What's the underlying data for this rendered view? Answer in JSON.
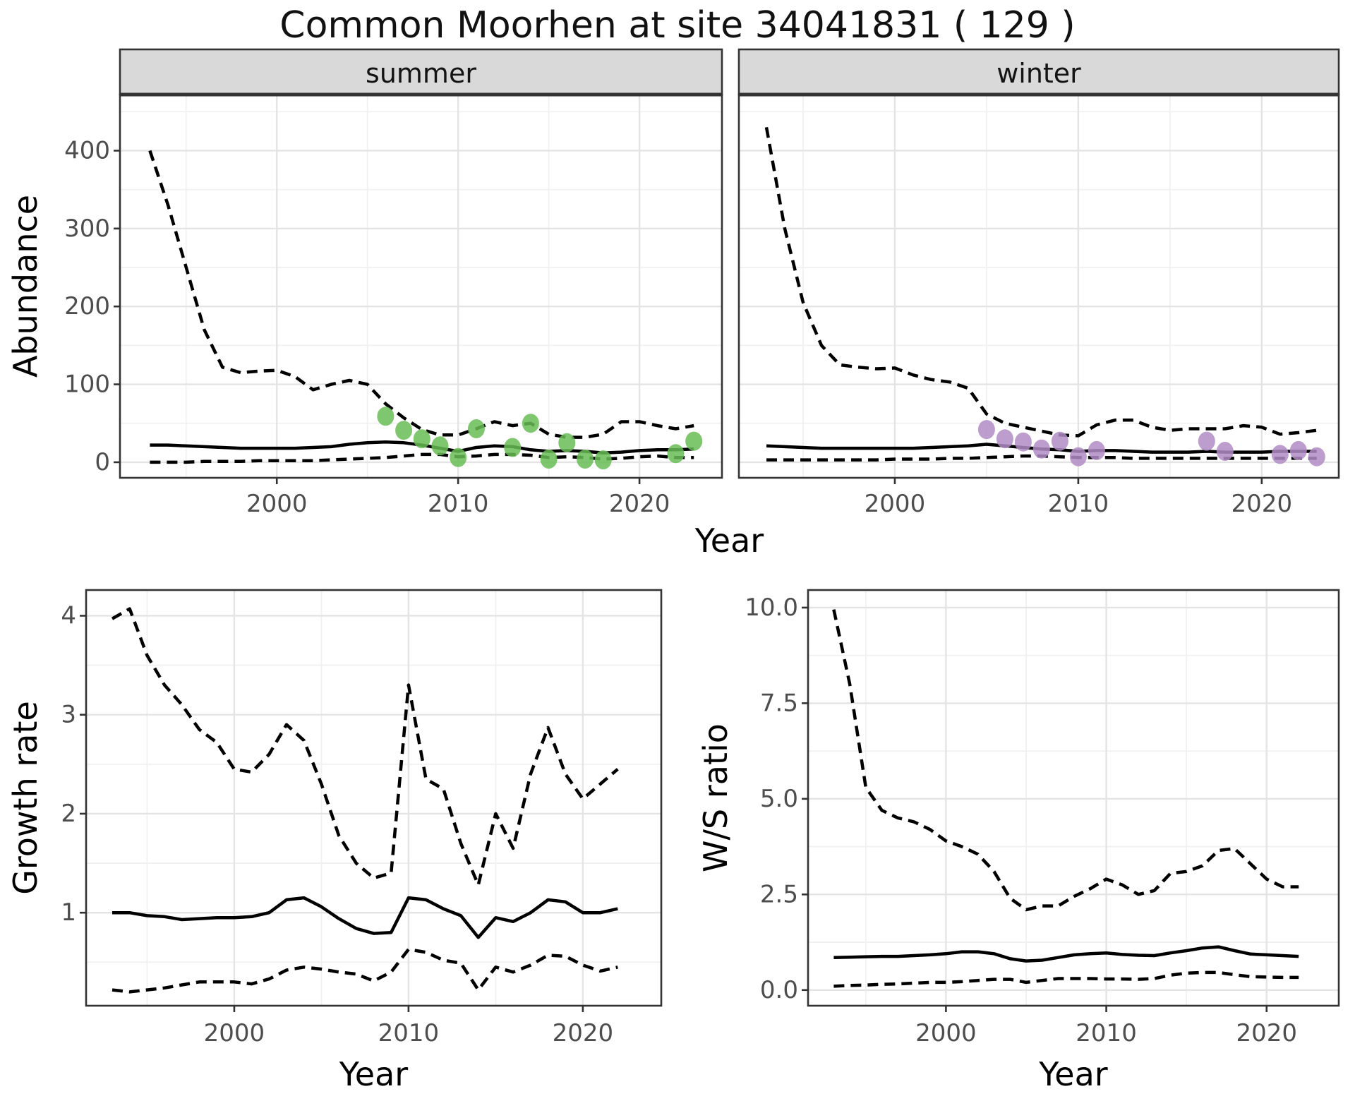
{
  "title": "Common Moorhen at site 34041831 ( 129 )",
  "shared_x_label": "Year",
  "facets": [
    "summer",
    "winter"
  ],
  "colors": {
    "summer_point": "#69bd55",
    "winter_point": "#b18cc6",
    "line": "#000000",
    "grid_major": "#e4e4e4",
    "grid_minor": "#f1f1f1",
    "panel_border": "#333333",
    "strip_bg": "#d9d9d9",
    "strip_text": "#141414",
    "axis_text": "#4d4d4d",
    "axis_title": "#000000",
    "tick_mark": "#333333"
  },
  "chart_data": [
    {
      "id": "abundance-summer",
      "type": "line",
      "facet": "summer",
      "xlabel": "Year",
      "ylabel": "Abundance",
      "xlim": [
        1991.35,
        2024.55
      ],
      "ylim": [
        -20,
        472
      ],
      "x_ticks": [
        2000,
        2010,
        2020
      ],
      "x_tick_labels": [
        "2000",
        "2010",
        "2020"
      ],
      "x_minor": [
        1995,
        2005,
        2015
      ],
      "y_ticks": [
        0,
        100,
        200,
        300,
        400
      ],
      "y_tick_labels": [
        "0",
        "100",
        "200",
        "300",
        "400"
      ],
      "y_minor": [
        50,
        150,
        250,
        350,
        450
      ],
      "x": [
        1993,
        1994,
        1995,
        1996,
        1997,
        1998,
        1999,
        2000,
        2001,
        2002,
        2003,
        2004,
        2005,
        2006,
        2007,
        2008,
        2009,
        2010,
        2011,
        2012,
        2013,
        2014,
        2015,
        2016,
        2017,
        2018,
        2019,
        2020,
        2021,
        2022,
        2023
      ],
      "series": [
        {
          "name": "upper_95ci",
          "style": "dashed",
          "values": [
            400,
            330,
            250,
            170,
            122,
            115,
            117,
            118,
            110,
            93,
            100,
            105,
            100,
            75,
            57,
            42,
            35,
            35,
            43,
            52,
            47,
            50,
            36,
            32,
            32,
            36,
            52,
            52,
            47,
            43,
            47
          ]
        },
        {
          "name": "median",
          "style": "solid",
          "values": [
            22,
            22,
            21,
            20,
            19,
            18,
            18,
            18,
            18,
            19,
            20,
            23,
            25,
            26,
            25,
            22,
            18,
            14,
            19,
            21,
            20,
            16,
            14,
            15,
            14,
            12,
            13,
            15,
            16,
            16,
            17
          ]
        },
        {
          "name": "lower_95ci",
          "style": "dashed",
          "values": [
            0,
            0,
            0,
            1,
            1,
            1,
            2,
            2,
            2,
            2,
            3,
            4,
            5,
            6,
            8,
            10,
            10,
            7,
            8,
            10,
            10,
            9,
            6,
            7,
            6,
            4,
            5,
            7,
            8,
            6,
            6
          ]
        }
      ],
      "points": {
        "name": "observed-summer",
        "color_key": "summer_point",
        "x": [
          2006,
          2007,
          2008,
          2009,
          2010,
          2011,
          2013,
          2014,
          2015,
          2016,
          2017,
          2018,
          2022,
          2023
        ],
        "y": [
          59,
          41,
          30,
          21,
          6,
          43,
          19,
          50,
          4,
          25,
          4,
          3,
          11,
          27
        ]
      }
    },
    {
      "id": "abundance-winter",
      "type": "line",
      "facet": "winter",
      "xlabel": "Year",
      "ylabel": "Abundance",
      "xlim": [
        1991.5,
        2024.2
      ],
      "ylim": [
        -20,
        472
      ],
      "x_ticks": [
        2000,
        2010,
        2020
      ],
      "x_tick_labels": [
        "2000",
        "2010",
        "2020"
      ],
      "x_minor": [
        1995,
        2005,
        2015
      ],
      "y_ticks": [
        0,
        100,
        200,
        300,
        400
      ],
      "y_tick_labels": [
        "0",
        "100",
        "200",
        "300",
        "400"
      ],
      "y_minor": [
        50,
        150,
        250,
        350,
        450
      ],
      "x": [
        1993,
        1994,
        1995,
        1996,
        1997,
        1998,
        1999,
        2000,
        2001,
        2002,
        2003,
        2004,
        2005,
        2006,
        2007,
        2008,
        2009,
        2010,
        2011,
        2012,
        2013,
        2014,
        2015,
        2016,
        2017,
        2018,
        2019,
        2020,
        2021,
        2022,
        2023
      ],
      "series": [
        {
          "name": "upper_95ci",
          "style": "dashed",
          "values": [
            430,
            300,
            205,
            150,
            125,
            122,
            120,
            121,
            112,
            106,
            103,
            95,
            62,
            50,
            45,
            40,
            35,
            34,
            48,
            54,
            54,
            45,
            41,
            43,
            43,
            43,
            47,
            45,
            36,
            38,
            41
          ]
        },
        {
          "name": "median",
          "style": "solid",
          "values": [
            21,
            20,
            19,
            18,
            18,
            18,
            18,
            18,
            18,
            19,
            20,
            21,
            23,
            21,
            19,
            17,
            16,
            14,
            15,
            15,
            14,
            13,
            13,
            13,
            14,
            13,
            13,
            13,
            14,
            14,
            14
          ]
        },
        {
          "name": "lower_95ci",
          "style": "dashed",
          "values": [
            3,
            3,
            3,
            3,
            3,
            3,
            3,
            4,
            4,
            4,
            5,
            5,
            6,
            7,
            8,
            8,
            7,
            6,
            6,
            6,
            5,
            5,
            5,
            5,
            5,
            5,
            5,
            5,
            5,
            5,
            5
          ]
        }
      ],
      "points": {
        "name": "observed-winter",
        "color_key": "winter_point",
        "x": [
          2005,
          2006,
          2007,
          2008,
          2009,
          2010,
          2011,
          2017,
          2018,
          2021,
          2022,
          2023
        ],
        "y": [
          42,
          30,
          26,
          17,
          27,
          7,
          15,
          27,
          14,
          10,
          15,
          7
        ]
      }
    },
    {
      "id": "growth-rate",
      "type": "line",
      "facet": null,
      "xlabel": "Year",
      "ylabel": "Growth rate",
      "xlim": [
        1991.5,
        2024.5
      ],
      "ylim": [
        0.06,
        4.26
      ],
      "x_ticks": [
        2000,
        2010,
        2020
      ],
      "x_tick_labels": [
        "2000",
        "2010",
        "2020"
      ],
      "x_minor": [
        1995,
        2005,
        2015
      ],
      "y_ticks": [
        1,
        2,
        3,
        4
      ],
      "y_tick_labels": [
        "1",
        "2",
        "3",
        "4"
      ],
      "y_minor": [
        0.5,
        1.5,
        2.5,
        3.5
      ],
      "x": [
        1993,
        1994,
        1995,
        1996,
        1997,
        1998,
        1999,
        2000,
        2001,
        2002,
        2003,
        2004,
        2005,
        2006,
        2007,
        2008,
        2009,
        2010,
        2011,
        2012,
        2013,
        2014,
        2015,
        2016,
        2017,
        2018,
        2019,
        2020,
        2021,
        2022
      ],
      "series": [
        {
          "name": "upper_95ci",
          "style": "dashed",
          "values": [
            3.97,
            4.07,
            3.6,
            3.3,
            3.1,
            2.85,
            2.72,
            2.45,
            2.42,
            2.6,
            2.9,
            2.74,
            2.3,
            1.78,
            1.5,
            1.35,
            1.4,
            3.3,
            2.35,
            2.25,
            1.7,
            1.28,
            2.0,
            1.65,
            2.4,
            2.87,
            2.4,
            2.15,
            2.3,
            2.45
          ]
        },
        {
          "name": "median",
          "style": "solid",
          "values": [
            1.0,
            1.0,
            0.97,
            0.96,
            0.93,
            0.94,
            0.95,
            0.95,
            0.96,
            1.0,
            1.13,
            1.15,
            1.06,
            0.94,
            0.84,
            0.79,
            0.8,
            1.15,
            1.13,
            1.04,
            0.97,
            0.75,
            0.95,
            0.91,
            1.0,
            1.13,
            1.11,
            1.0,
            1.0,
            1.04
          ]
        },
        {
          "name": "lower_95ci",
          "style": "dashed",
          "values": [
            0.22,
            0.2,
            0.22,
            0.24,
            0.27,
            0.3,
            0.3,
            0.3,
            0.28,
            0.33,
            0.42,
            0.45,
            0.43,
            0.4,
            0.38,
            0.31,
            0.4,
            0.63,
            0.6,
            0.52,
            0.49,
            0.22,
            0.45,
            0.4,
            0.47,
            0.57,
            0.56,
            0.47,
            0.41,
            0.45
          ]
        }
      ],
      "points": null
    },
    {
      "id": "ws-ratio",
      "type": "line",
      "facet": null,
      "xlabel": "Year",
      "ylabel": "W/S ratio",
      "xlim": [
        1991.4,
        2024.5
      ],
      "ylim": [
        -0.41,
        10.46
      ],
      "x_ticks": [
        2000,
        2010,
        2020
      ],
      "x_tick_labels": [
        "2000",
        "2010",
        "2020"
      ],
      "x_minor": [
        1995,
        2005,
        2015
      ],
      "y_ticks": [
        0,
        2.5,
        5,
        7.5,
        10
      ],
      "y_tick_labels": [
        "0.0",
        "2.5",
        "5.0",
        "7.5",
        "10.0"
      ],
      "y_minor": [
        1.25,
        3.75,
        6.25,
        8.75
      ],
      "x": [
        1993,
        1994,
        1995,
        1996,
        1997,
        1998,
        1999,
        2000,
        2001,
        2002,
        2003,
        2004,
        2005,
        2006,
        2007,
        2008,
        2009,
        2010,
        2011,
        2012,
        2013,
        2014,
        2015,
        2016,
        2017,
        2018,
        2019,
        2020,
        2021,
        2022
      ],
      "series": [
        {
          "name": "upper_95ci",
          "style": "dashed",
          "values": [
            9.95,
            8.0,
            5.3,
            4.7,
            4.5,
            4.4,
            4.2,
            3.9,
            3.75,
            3.55,
            3.1,
            2.4,
            2.1,
            2.2,
            2.2,
            2.45,
            2.65,
            2.9,
            2.75,
            2.5,
            2.6,
            3.05,
            3.1,
            3.25,
            3.65,
            3.7,
            3.3,
            2.9,
            2.7,
            2.7
          ]
        },
        {
          "name": "median",
          "style": "solid",
          "values": [
            0.85,
            0.86,
            0.87,
            0.88,
            0.88,
            0.9,
            0.92,
            0.95,
            1.0,
            1.0,
            0.95,
            0.82,
            0.76,
            0.78,
            0.85,
            0.92,
            0.95,
            0.97,
            0.93,
            0.91,
            0.9,
            0.97,
            1.03,
            1.1,
            1.13,
            1.03,
            0.94,
            0.92,
            0.9,
            0.88
          ]
        },
        {
          "name": "lower_95ci",
          "style": "dashed",
          "values": [
            0.1,
            0.12,
            0.13,
            0.15,
            0.16,
            0.18,
            0.2,
            0.2,
            0.22,
            0.25,
            0.28,
            0.28,
            0.2,
            0.25,
            0.3,
            0.3,
            0.3,
            0.29,
            0.29,
            0.28,
            0.3,
            0.39,
            0.44,
            0.46,
            0.46,
            0.4,
            0.35,
            0.34,
            0.33,
            0.33
          ]
        }
      ],
      "points": null
    }
  ]
}
